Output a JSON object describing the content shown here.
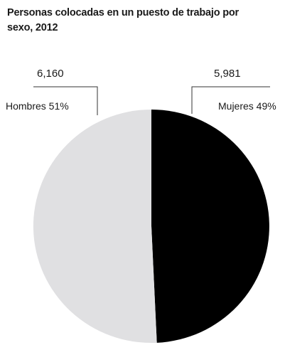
{
  "title": "Personas colocadas en un puesto de trabajo por sexo, 2012",
  "chart_data": {
    "type": "pie",
    "title": "Personas colocadas en un puesto de trabajo por sexo, 2012",
    "slices": [
      {
        "label": "Mujeres 49%",
        "value": 5981,
        "value_label": "5,981",
        "percent": 49,
        "color": "#000000"
      },
      {
        "label": "Hombres 51%",
        "value": 6160,
        "value_label": "6,160",
        "percent": 51,
        "color": "#e0e0e2"
      }
    ],
    "start": "12 o'clock, clockwise",
    "legend": "none"
  }
}
